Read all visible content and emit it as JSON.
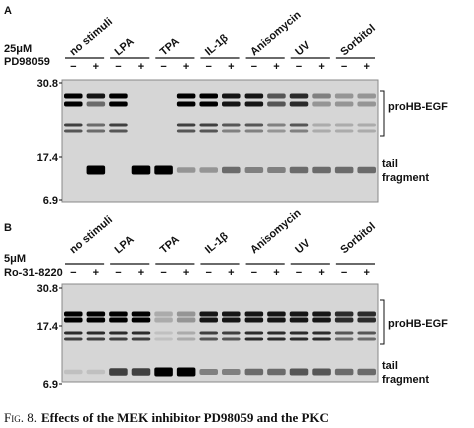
{
  "panels": [
    {
      "label": "A",
      "treatment": [
        "25μM",
        "PD98059"
      ],
      "groups": [
        {
          "name": "no stimuli",
          "signs": [
            "−",
            "+"
          ]
        },
        {
          "name": "LPA",
          "signs": [
            "−",
            "+"
          ]
        },
        {
          "name": "TPA",
          "signs": [
            "−",
            "+"
          ]
        },
        {
          "name": "IL-1β",
          "signs": [
            "−",
            "+"
          ]
        },
        {
          "name": "Anisomycin",
          "signs": [
            "−",
            "+"
          ]
        },
        {
          "name": "UV",
          "signs": [
            "−",
            "+"
          ]
        },
        {
          "name": "Sorbitol",
          "signs": [
            "−",
            "+"
          ]
        }
      ],
      "markers": [
        "30.8",
        "17.4",
        "6.9"
      ],
      "bands": [
        "proHB-EGF",
        "tail",
        "fragment"
      ]
    },
    {
      "label": "B",
      "treatment": [
        "5μM",
        "Ro-31-8220"
      ],
      "groups": [
        {
          "name": "no stimuli",
          "signs": [
            "−",
            "+"
          ]
        },
        {
          "name": "LPA",
          "signs": [
            "−",
            "+"
          ]
        },
        {
          "name": "TPA",
          "signs": [
            "−",
            "+"
          ]
        },
        {
          "name": "IL-1β",
          "signs": [
            "−",
            "+"
          ]
        },
        {
          "name": "Anisomycin",
          "signs": [
            "−",
            "+"
          ]
        },
        {
          "name": "UV",
          "signs": [
            "−",
            "+"
          ]
        },
        {
          "name": "Sorbitol",
          "signs": [
            "−",
            "+"
          ]
        }
      ],
      "markers": [
        "30.8",
        "17.4",
        "6.9"
      ],
      "bands": [
        "proHB-EGF",
        "tail",
        "fragment"
      ]
    }
  ],
  "caption": {
    "label": "Fig. 8.",
    "text": "Effects of the MEK inhibitor PD98059 and the PKC"
  }
}
